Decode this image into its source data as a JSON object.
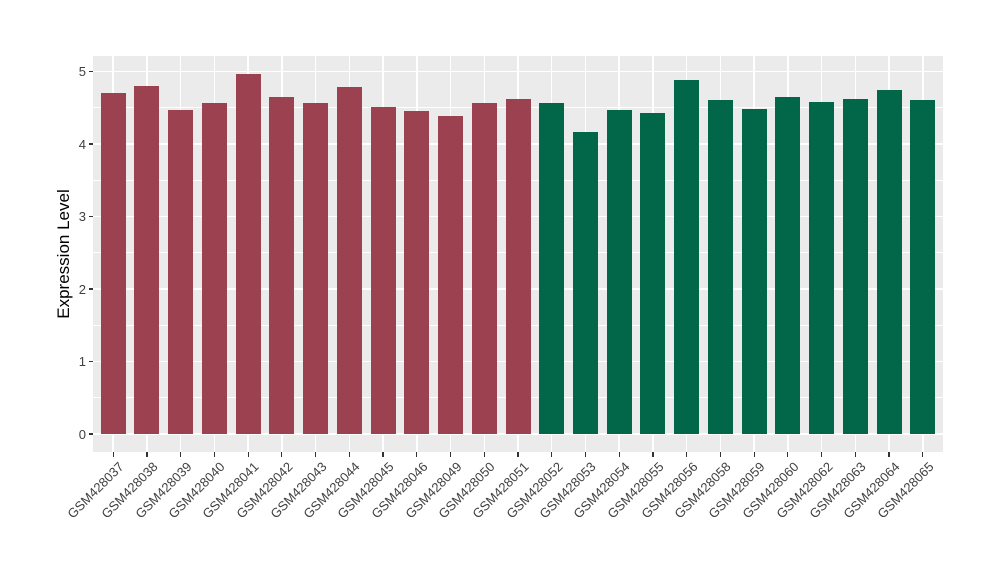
{
  "chart_data": {
    "type": "bar",
    "title": "",
    "xlabel": "",
    "ylabel": "Expression Level",
    "categories": [
      "GSM428037",
      "GSM428038",
      "GSM428039",
      "GSM428040",
      "GSM428041",
      "GSM428042",
      "GSM428043",
      "GSM428044",
      "GSM428045",
      "GSM428046",
      "GSM428049",
      "GSM428050",
      "GSM428051",
      "GSM428052",
      "GSM428053",
      "GSM428054",
      "GSM428055",
      "GSM428056",
      "GSM428058",
      "GSM428059",
      "GSM428060",
      "GSM428062",
      "GSM428063",
      "GSM428064",
      "GSM428065"
    ],
    "values": [
      4.7,
      4.8,
      4.47,
      4.57,
      4.96,
      4.65,
      4.56,
      4.79,
      4.51,
      4.46,
      4.39,
      4.56,
      4.62,
      4.57,
      4.16,
      4.47,
      4.43,
      4.88,
      4.61,
      4.48,
      4.65,
      4.58,
      4.62,
      4.75,
      4.61
    ],
    "group_split_index": 13,
    "group_colors": {
      "group1": "#9C4150",
      "group2": "#016748"
    },
    "yticks": [
      0,
      1,
      2,
      3,
      4,
      5
    ],
    "ylim": [
      0,
      5.21
    ],
    "grid": "major and minor horizontal white lines, vertical white line per category",
    "legend": "none",
    "panel_background": "#EBEBEB",
    "gridline_color": "#FFFFFF",
    "axis_text_color": "#404040",
    "axis_title_color": "#000000",
    "tick_mark_color": "#333333"
  }
}
